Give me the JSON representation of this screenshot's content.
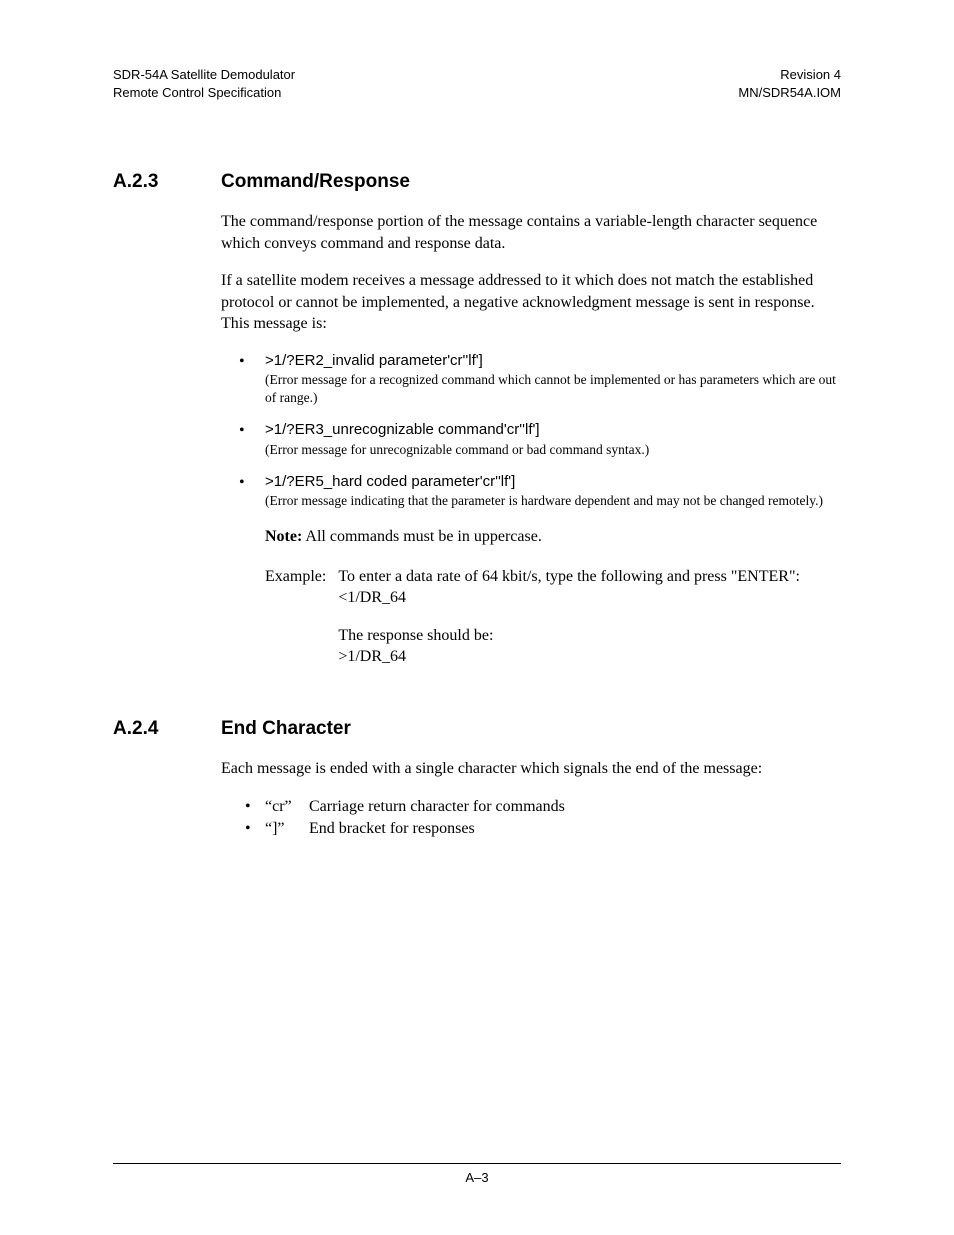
{
  "header": {
    "left_line1": "SDR-54A Satellite Demodulator",
    "left_line2": "Remote Control Specification",
    "right_line1": "Revision 4",
    "right_line2": "MN/SDR54A.IOM"
  },
  "section_a23": {
    "number": "A.2.3",
    "title": "Command/Response",
    "para1": "The command/response portion of the message contains a variable-length character sequence which conveys command and response data.",
    "para2": "If a satellite modem receives a message addressed to it which does not match the established protocol or cannot be implemented, a negative acknowledgment message is sent in response. This message is:",
    "errors": [
      {
        "cmd": ">1/?ER2_invalid parameter'cr''lf']",
        "desc": "(Error message for a recognized command which cannot be implemented or has parameters which are out of range.)"
      },
      {
        "cmd": ">1/?ER3_unrecognizable command'cr''lf']",
        "desc": "(Error message for unrecognizable command or bad command syntax.)"
      },
      {
        "cmd": ">1/?ER5_hard coded parameter'cr''lf']",
        "desc": "(Error message indicating that the parameter is hardware dependent and may not be changed remotely.)"
      }
    ],
    "note_label": "Note:",
    "note_text": " All commands must be in uppercase.",
    "example_label": "Example:",
    "example_line1": "To enter a data rate of 64 kbit/s, type the following and press \"ENTER\":",
    "example_line2": "<1/DR_64",
    "example_line3": "The response should be:",
    "example_line4": ">1/DR_64"
  },
  "section_a24": {
    "number": "A.2.4",
    "title": "End Character",
    "para1": "Each message is ended with a single character which signals the end of the message:",
    "items": [
      {
        "sym": "“cr”",
        "desc": "Carriage return character for commands"
      },
      {
        "sym": "“]”",
        "desc": "End bracket for responses"
      }
    ]
  },
  "footer": {
    "page": "A–3"
  }
}
